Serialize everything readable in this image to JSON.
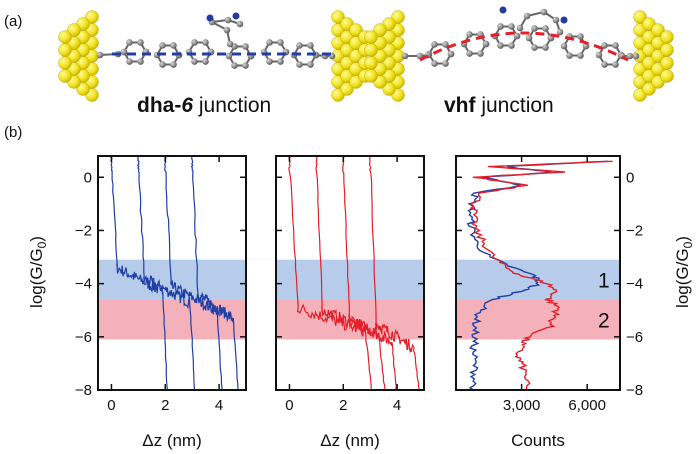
{
  "panel_a": {
    "label": "(a)",
    "left_junction": {
      "name_bold": "dha-",
      "name_bold_italic": "6",
      "suffix": " junction"
    },
    "right_junction": {
      "name_bold": "vhf",
      "suffix": " junction"
    }
  },
  "panel_b": {
    "label": "(b)",
    "band_labels": [
      "1",
      "2"
    ],
    "colors": {
      "dha": "#1f3fa6",
      "vhf": "#e3202a",
      "band1": "#a9c3e6",
      "band2": "#f2a3ad",
      "gold": "#f3e52a",
      "carbon": "#7a7a7a"
    }
  },
  "chart_data": [
    {
      "type": "line",
      "series_color": "#1f3fa6",
      "xlabel": "Δz (nm)",
      "ylabel": "log(G/G0)",
      "xlim": [
        -0.5,
        5
      ],
      "ylim": [
        -8,
        0.8
      ],
      "xticks": [
        0,
        2,
        4
      ],
      "yticks": [
        0,
        -2,
        -4,
        -6,
        -8
      ],
      "traces": [
        {
          "x0": 0.0,
          "plateau_start": 0.2,
          "plateau_level": -3.4,
          "plateau_end": 1.9
        },
        {
          "x0": 1.0,
          "plateau_start": 1.2,
          "plateau_level": -3.8,
          "plateau_end": 2.9
        },
        {
          "x0": 2.0,
          "plateau_start": 2.2,
          "plateau_level": -4.1,
          "plateau_end": 3.9
        },
        {
          "x0": 3.0,
          "plateau_start": 3.2,
          "plateau_level": -4.4,
          "plateau_end": 4.5
        }
      ]
    },
    {
      "type": "line",
      "series_color": "#e3202a",
      "xlabel": "Δz (nm)",
      "ylabel": "",
      "xlim": [
        -0.5,
        5
      ],
      "ylim": [
        -8,
        0.8
      ],
      "xticks": [
        0,
        2,
        4
      ],
      "yticks": [
        0,
        -2,
        -4,
        -6,
        -8
      ],
      "traces": [
        {
          "x0": 0.0,
          "plateau_start": 0.3,
          "plateau_level": -4.9,
          "plateau_end": 2.8
        },
        {
          "x0": 1.0,
          "plateau_start": 1.2,
          "plateau_level": -5.0,
          "plateau_end": 3.3
        },
        {
          "x0": 2.0,
          "plateau_start": 2.2,
          "plateau_level": -5.3,
          "plateau_end": 3.8
        },
        {
          "x0": 3.0,
          "plateau_start": 3.2,
          "plateau_level": -5.5,
          "plateau_end": 4.6
        }
      ]
    },
    {
      "type": "line",
      "xlabel": "Counts",
      "ylabel": "log(G/G0)",
      "xlim": [
        0,
        7500
      ],
      "ylim": [
        -8,
        0.8
      ],
      "xticks": [
        3000,
        6000
      ],
      "xtick_labels": [
        "3,000",
        "6,000"
      ],
      "yticks": [
        0,
        -2,
        -4,
        -6,
        -8
      ],
      "bands": [
        {
          "label": "1",
          "ymin": -4.6,
          "ymax": -3.1
        },
        {
          "label": "2",
          "ymin": -6.1,
          "ymax": -4.6
        }
      ],
      "series": [
        {
          "color": "#1f3fa6",
          "y": [
            0.6,
            0.4,
            0.2,
            0.0,
            -0.3,
            -0.6,
            -1.0,
            -1.5,
            -2.0,
            -2.5,
            -3.0,
            -3.4,
            -3.7,
            -4.0,
            -4.3,
            -4.6,
            -5.0,
            -5.5,
            -6.0,
            -6.5,
            -7.0,
            -7.5,
            -8.0
          ],
          "counts": [
            6800,
            2200,
            4400,
            1300,
            3000,
            900,
            750,
            650,
            750,
            950,
            1500,
            2600,
            3600,
            3800,
            2900,
            1700,
            1100,
            900,
            850,
            800,
            850,
            850,
            800
          ]
        },
        {
          "color": "#e3202a",
          "y": [
            0.6,
            0.4,
            0.2,
            0.0,
            -0.3,
            -0.6,
            -1.0,
            -1.5,
            -2.0,
            -2.5,
            -3.0,
            -3.4,
            -3.7,
            -4.0,
            -4.3,
            -4.6,
            -4.9,
            -5.2,
            -5.6,
            -6.0,
            -6.3,
            -6.7,
            -7.0,
            -7.5,
            -8.0
          ],
          "counts": [
            7000,
            1400,
            4900,
            800,
            3300,
            1200,
            850,
            800,
            900,
            1300,
            1700,
            2300,
            3000,
            4200,
            4600,
            4200,
            4700,
            4500,
            4300,
            3300,
            3000,
            2800,
            3000,
            3200,
            3200
          ]
        }
      ]
    }
  ]
}
